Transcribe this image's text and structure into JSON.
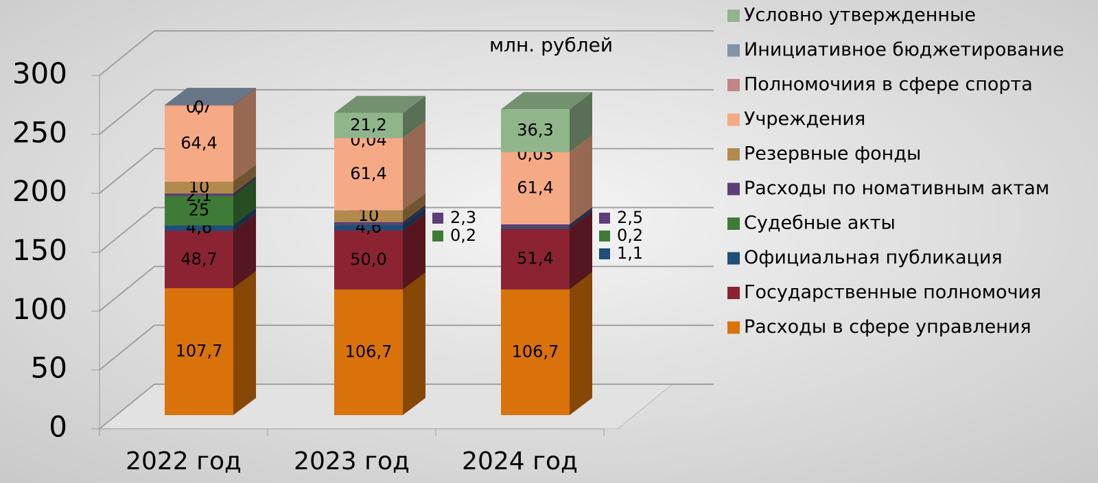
{
  "chart_data": {
    "type": "bar3d_stacked",
    "annotation": "млн. рублей",
    "categories": [
      "2022 год",
      "2023 год",
      "2024 год"
    ],
    "ylim": [
      0,
      300
    ],
    "yticks": [
      0,
      50,
      100,
      150,
      200,
      250,
      300
    ],
    "grid": true,
    "legend": "right",
    "series": [
      {
        "name": "Расходы в сфере управления",
        "color": "#d9720a",
        "values": [
          107.7,
          106.7,
          106.7
        ],
        "value_labels": [
          "107,7",
          "106,7",
          "106,7"
        ]
      },
      {
        "name": "Государственные полномочия",
        "color": "#8b2332",
        "values": [
          48.7,
          50.0,
          51.4
        ],
        "value_labels": [
          "48,7",
          "50,0",
          "51,4"
        ]
      },
      {
        "name": "Официальная публикация",
        "color": "#1f4e79",
        "values": [
          4.6,
          4.6,
          1.1
        ],
        "value_labels": [
          "4,6",
          "4,6",
          "1,1"
        ]
      },
      {
        "name": "Судебные акты",
        "color": "#3e7b36",
        "values": [
          25,
          0.2,
          0.2
        ],
        "value_labels": [
          "25",
          "0,2",
          "0,2"
        ]
      },
      {
        "name": "Расходы по номативным актам",
        "color": "#5b3f78",
        "values": [
          2.1,
          2.3,
          2.5
        ],
        "value_labels": [
          "2,1",
          "2,3",
          "2,5"
        ]
      },
      {
        "name": "Резервные фонды",
        "color": "#b38a4e",
        "values": [
          10,
          10,
          null
        ],
        "value_labels": [
          "10",
          "10",
          null
        ]
      },
      {
        "name": "Учреждения",
        "color": "#f5aa85",
        "values": [
          64.4,
          61.4,
          61.4
        ],
        "value_labels": [
          "64,4",
          "61,4",
          "61,4"
        ]
      },
      {
        "name": "Полномочиия в сфере спорта",
        "color": "#c28585",
        "values": [
          0.7,
          0.04,
          0.03
        ],
        "value_labels": [
          "0,7",
          "0,04",
          "0,03"
        ]
      },
      {
        "name": "Инициативное бюджетирование",
        "color": "#8194a8",
        "values": [
          0,
          null,
          null
        ],
        "value_labels": [
          "0",
          null,
          null
        ]
      },
      {
        "name": "Условно утвержденные",
        "color": "#90b58b",
        "values": [
          null,
          21.2,
          36.3
        ],
        "value_labels": [
          null,
          "21,2",
          "36,3"
        ]
      }
    ]
  }
}
